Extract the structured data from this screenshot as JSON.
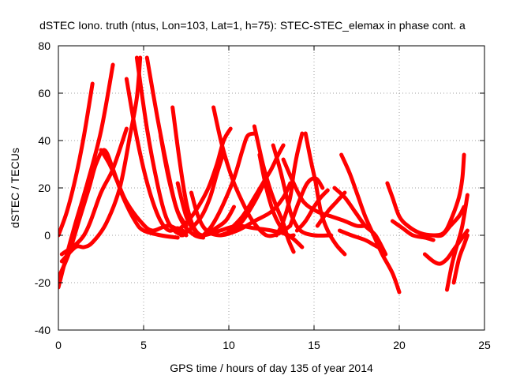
{
  "chart_data": {
    "type": "line",
    "title": "dSTEC Iono. truth (ntus, Lon=103, Lat=1, h=75): STEC-STEC_elemax in phase cont. a",
    "xlabel": "GPS time / hours of day 135 of year 2014",
    "ylabel": "dSTEC  / TECUs",
    "xlim": [
      0,
      25
    ],
    "ylim": [
      -40,
      80
    ],
    "xticks": [
      0,
      5,
      10,
      15,
      20,
      25
    ],
    "yticks": [
      -40,
      -20,
      0,
      20,
      40,
      60,
      80
    ],
    "xtick_labels": [
      "0",
      "5",
      "10",
      "15",
      "20",
      "25"
    ],
    "ytick_labels": [
      "-40",
      "-20",
      "0",
      "20",
      "40",
      "60",
      "80"
    ],
    "grid": true,
    "series_color": "#ff0000",
    "series": [
      {
        "points": [
          [
            0.0,
            0
          ],
          [
            0.5,
            10
          ],
          [
            1.0,
            24
          ],
          [
            1.5,
            42
          ],
          [
            2.0,
            64
          ]
        ]
      },
      {
        "points": [
          [
            0.0,
            -22
          ],
          [
            0.5,
            -8
          ],
          [
            1.0,
            5
          ],
          [
            1.7,
            22
          ],
          [
            2.5,
            44
          ],
          [
            3.2,
            72
          ]
        ]
      },
      {
        "points": [
          [
            0.0,
            -18
          ],
          [
            0.6,
            -8
          ],
          [
            1.2,
            6
          ],
          [
            1.8,
            20
          ],
          [
            2.2,
            30
          ],
          [
            2.7,
            36
          ],
          [
            3.2,
            28
          ],
          [
            3.8,
            16
          ],
          [
            4.5,
            6
          ],
          [
            5.0,
            2
          ],
          [
            6.0,
            0
          ],
          [
            7.0,
            -1
          ]
        ]
      },
      {
        "points": [
          [
            0.2,
            -11
          ],
          [
            1.0,
            -5
          ],
          [
            1.5,
            -5
          ],
          [
            2.0,
            -3
          ],
          [
            2.8,
            5
          ],
          [
            3.6,
            20
          ],
          [
            4.2,
            42
          ],
          [
            4.6,
            58
          ],
          [
            4.8,
            75
          ]
        ]
      },
      {
        "points": [
          [
            0.2,
            -8
          ],
          [
            1.5,
            0
          ],
          [
            2.5,
            18
          ],
          [
            3.2,
            28
          ],
          [
            4.0,
            45
          ]
        ]
      },
      {
        "points": [
          [
            2.5,
            36
          ],
          [
            3.0,
            30
          ],
          [
            3.5,
            22
          ],
          [
            4.0,
            14
          ],
          [
            4.8,
            6
          ],
          [
            5.5,
            2
          ],
          [
            6.5,
            4
          ],
          [
            7.5,
            0
          ]
        ]
      },
      {
        "points": [
          [
            4.0,
            66
          ],
          [
            4.5,
            45
          ],
          [
            5.0,
            28
          ],
          [
            5.5,
            15
          ],
          [
            6.0,
            6
          ],
          [
            6.5,
            2
          ],
          [
            7.0,
            3
          ],
          [
            7.5,
            1
          ]
        ]
      },
      {
        "points": [
          [
            4.6,
            75
          ],
          [
            5.2,
            45
          ],
          [
            5.8,
            22
          ],
          [
            6.3,
            8
          ],
          [
            6.8,
            2
          ],
          [
            7.3,
            0
          ]
        ]
      },
      {
        "points": [
          [
            5.2,
            75
          ],
          [
            5.8,
            50
          ],
          [
            6.4,
            28
          ],
          [
            6.9,
            12
          ],
          [
            7.4,
            4
          ],
          [
            8.0,
            0
          ],
          [
            8.5,
            -1
          ]
        ]
      },
      {
        "points": [
          [
            6.0,
            42
          ],
          [
            6.3,
            30
          ],
          [
            6.6,
            20
          ],
          [
            7.0,
            10
          ],
          [
            7.5,
            4
          ]
        ]
      },
      {
        "points": [
          [
            6.7,
            54
          ],
          [
            7.1,
            32
          ],
          [
            7.5,
            14
          ],
          [
            7.9,
            4
          ],
          [
            8.4,
            0
          ],
          [
            9.0,
            2
          ],
          [
            9.8,
            6
          ],
          [
            10.3,
            12
          ]
        ]
      },
      {
        "points": [
          [
            7.0,
            22
          ],
          [
            7.5,
            8
          ],
          [
            8.0,
            2
          ],
          [
            8.5,
            0
          ],
          [
            9.5,
            2
          ],
          [
            10.5,
            4
          ],
          [
            11.5,
            3
          ],
          [
            12.5,
            2
          ],
          [
            13.5,
            0
          ],
          [
            14.3,
            -5
          ]
        ]
      },
      {
        "points": [
          [
            7.8,
            18
          ],
          [
            8.2,
            8
          ],
          [
            8.7,
            2
          ],
          [
            9.5,
            0
          ],
          [
            10.5,
            2
          ],
          [
            11.5,
            6
          ],
          [
            12.5,
            10
          ],
          [
            13.2,
            16
          ],
          [
            13.6,
            22
          ]
        ]
      },
      {
        "points": [
          [
            7.0,
            2
          ],
          [
            7.6,
            6
          ],
          [
            8.2,
            12
          ],
          [
            8.8,
            20
          ],
          [
            9.3,
            30
          ],
          [
            9.7,
            40
          ],
          [
            10.1,
            45
          ]
        ]
      },
      {
        "points": [
          [
            7.2,
            0
          ],
          [
            7.8,
            3
          ],
          [
            8.4,
            8
          ],
          [
            8.9,
            16
          ],
          [
            9.3,
            26
          ],
          [
            9.7,
            35
          ]
        ]
      },
      {
        "points": [
          [
            9.1,
            54
          ],
          [
            9.6,
            38
          ],
          [
            10.2,
            24
          ],
          [
            10.8,
            14
          ],
          [
            11.4,
            6
          ],
          [
            12.2,
            0
          ],
          [
            13.0,
            1
          ],
          [
            13.6,
            4
          ]
        ]
      },
      {
        "points": [
          [
            8.5,
            0
          ],
          [
            9.0,
            4
          ],
          [
            9.6,
            12
          ],
          [
            10.3,
            24
          ],
          [
            10.8,
            36
          ],
          [
            11.1,
            42
          ],
          [
            11.5,
            43
          ]
        ]
      },
      {
        "points": [
          [
            9.5,
            0
          ],
          [
            10.2,
            2
          ],
          [
            10.8,
            6
          ],
          [
            11.5,
            14
          ],
          [
            12.0,
            21
          ]
        ]
      },
      {
        "points": [
          [
            10.0,
            2
          ],
          [
            10.8,
            8
          ],
          [
            11.5,
            16
          ],
          [
            12.0,
            22
          ],
          [
            12.5,
            28
          ],
          [
            12.9,
            34
          ],
          [
            13.2,
            38
          ]
        ]
      },
      {
        "points": [
          [
            11.5,
            46
          ],
          [
            12.0,
            30
          ],
          [
            12.4,
            20
          ],
          [
            12.8,
            12
          ],
          [
            13.2,
            5
          ],
          [
            13.5,
            -2
          ],
          [
            13.8,
            -7
          ]
        ]
      },
      {
        "points": [
          [
            11.8,
            34
          ],
          [
            12.2,
            20
          ],
          [
            12.6,
            10
          ],
          [
            13.0,
            4
          ],
          [
            13.4,
            0
          ],
          [
            13.8,
            0
          ]
        ]
      },
      {
        "points": [
          [
            12.6,
            38
          ],
          [
            13.0,
            28
          ],
          [
            13.4,
            16
          ],
          [
            13.7,
            8
          ],
          [
            14.2,
            2
          ],
          [
            15.0,
            0
          ],
          [
            16.0,
            0
          ]
        ]
      },
      {
        "points": [
          [
            12.8,
            0
          ],
          [
            13.2,
            6
          ],
          [
            13.6,
            16
          ],
          [
            13.8,
            26
          ],
          [
            14.0,
            34
          ],
          [
            14.3,
            43
          ]
        ]
      },
      {
        "points": [
          [
            13.2,
            32
          ],
          [
            13.8,
            22
          ],
          [
            14.4,
            14
          ],
          [
            15.2,
            10
          ],
          [
            16.0,
            8
          ],
          [
            16.8,
            6
          ],
          [
            17.5,
            4
          ],
          [
            18.0,
            4
          ]
        ]
      },
      {
        "points": [
          [
            13.6,
            4
          ],
          [
            14.1,
            14
          ],
          [
            14.6,
            22
          ],
          [
            15.1,
            24
          ],
          [
            15.5,
            20
          ]
        ]
      },
      {
        "points": [
          [
            14.5,
            43
          ],
          [
            14.8,
            32
          ],
          [
            15.1,
            22
          ],
          [
            15.4,
            10
          ],
          [
            15.8,
            2
          ],
          [
            16.3,
            -4
          ],
          [
            16.8,
            -8
          ]
        ]
      },
      {
        "points": [
          [
            14.0,
            2
          ],
          [
            14.5,
            6
          ],
          [
            15.0,
            12
          ],
          [
            15.4,
            16
          ],
          [
            15.8,
            19
          ]
        ]
      },
      {
        "points": [
          [
            15.2,
            4
          ],
          [
            15.8,
            10
          ],
          [
            16.3,
            14
          ],
          [
            16.8,
            18
          ]
        ]
      },
      {
        "points": [
          [
            16.2,
            20
          ],
          [
            16.8,
            16
          ],
          [
            17.4,
            10
          ],
          [
            18.0,
            4
          ],
          [
            18.6,
            0
          ],
          [
            19.2,
            -8
          ]
        ]
      },
      {
        "points": [
          [
            16.6,
            34
          ],
          [
            17.1,
            26
          ],
          [
            17.6,
            16
          ],
          [
            18.0,
            8
          ],
          [
            18.5,
            0
          ],
          [
            19.0,
            -8
          ],
          [
            19.6,
            -16
          ],
          [
            20.0,
            -24
          ]
        ]
      },
      {
        "points": [
          [
            16.5,
            2
          ],
          [
            17.2,
            0
          ],
          [
            18.0,
            -2
          ],
          [
            18.5,
            -4
          ],
          [
            19.0,
            -6
          ]
        ]
      },
      {
        "points": [
          [
            19.3,
            22
          ],
          [
            19.6,
            16
          ],
          [
            20.0,
            8
          ],
          [
            20.5,
            4
          ],
          [
            21.2,
            1
          ],
          [
            22.0,
            0
          ],
          [
            22.6,
            1
          ],
          [
            23.0,
            6
          ],
          [
            23.5,
            16
          ],
          [
            23.7,
            24
          ],
          [
            23.8,
            34
          ]
        ]
      },
      {
        "points": [
          [
            19.6,
            6
          ],
          [
            20.2,
            3
          ],
          [
            20.8,
            0
          ],
          [
            21.5,
            -1
          ],
          [
            22.0,
            -2
          ]
        ]
      },
      {
        "points": [
          [
            21.5,
            -8
          ],
          [
            22.0,
            -11
          ],
          [
            22.4,
            -12
          ],
          [
            22.8,
            -10
          ],
          [
            23.2,
            -6
          ],
          [
            23.6,
            -2
          ],
          [
            24.0,
            2
          ]
        ]
      },
      {
        "points": [
          [
            22.0,
            0
          ],
          [
            22.5,
            0
          ],
          [
            23.0,
            4
          ],
          [
            23.5,
            8
          ],
          [
            23.8,
            12
          ]
        ]
      },
      {
        "points": [
          [
            22.8,
            -23
          ],
          [
            23.1,
            -12
          ],
          [
            23.4,
            -4
          ],
          [
            23.7,
            4
          ],
          [
            24.0,
            17
          ]
        ]
      },
      {
        "points": [
          [
            23.2,
            -20
          ],
          [
            23.5,
            -10
          ],
          [
            23.8,
            -4
          ],
          [
            24.0,
            0
          ]
        ]
      }
    ]
  }
}
